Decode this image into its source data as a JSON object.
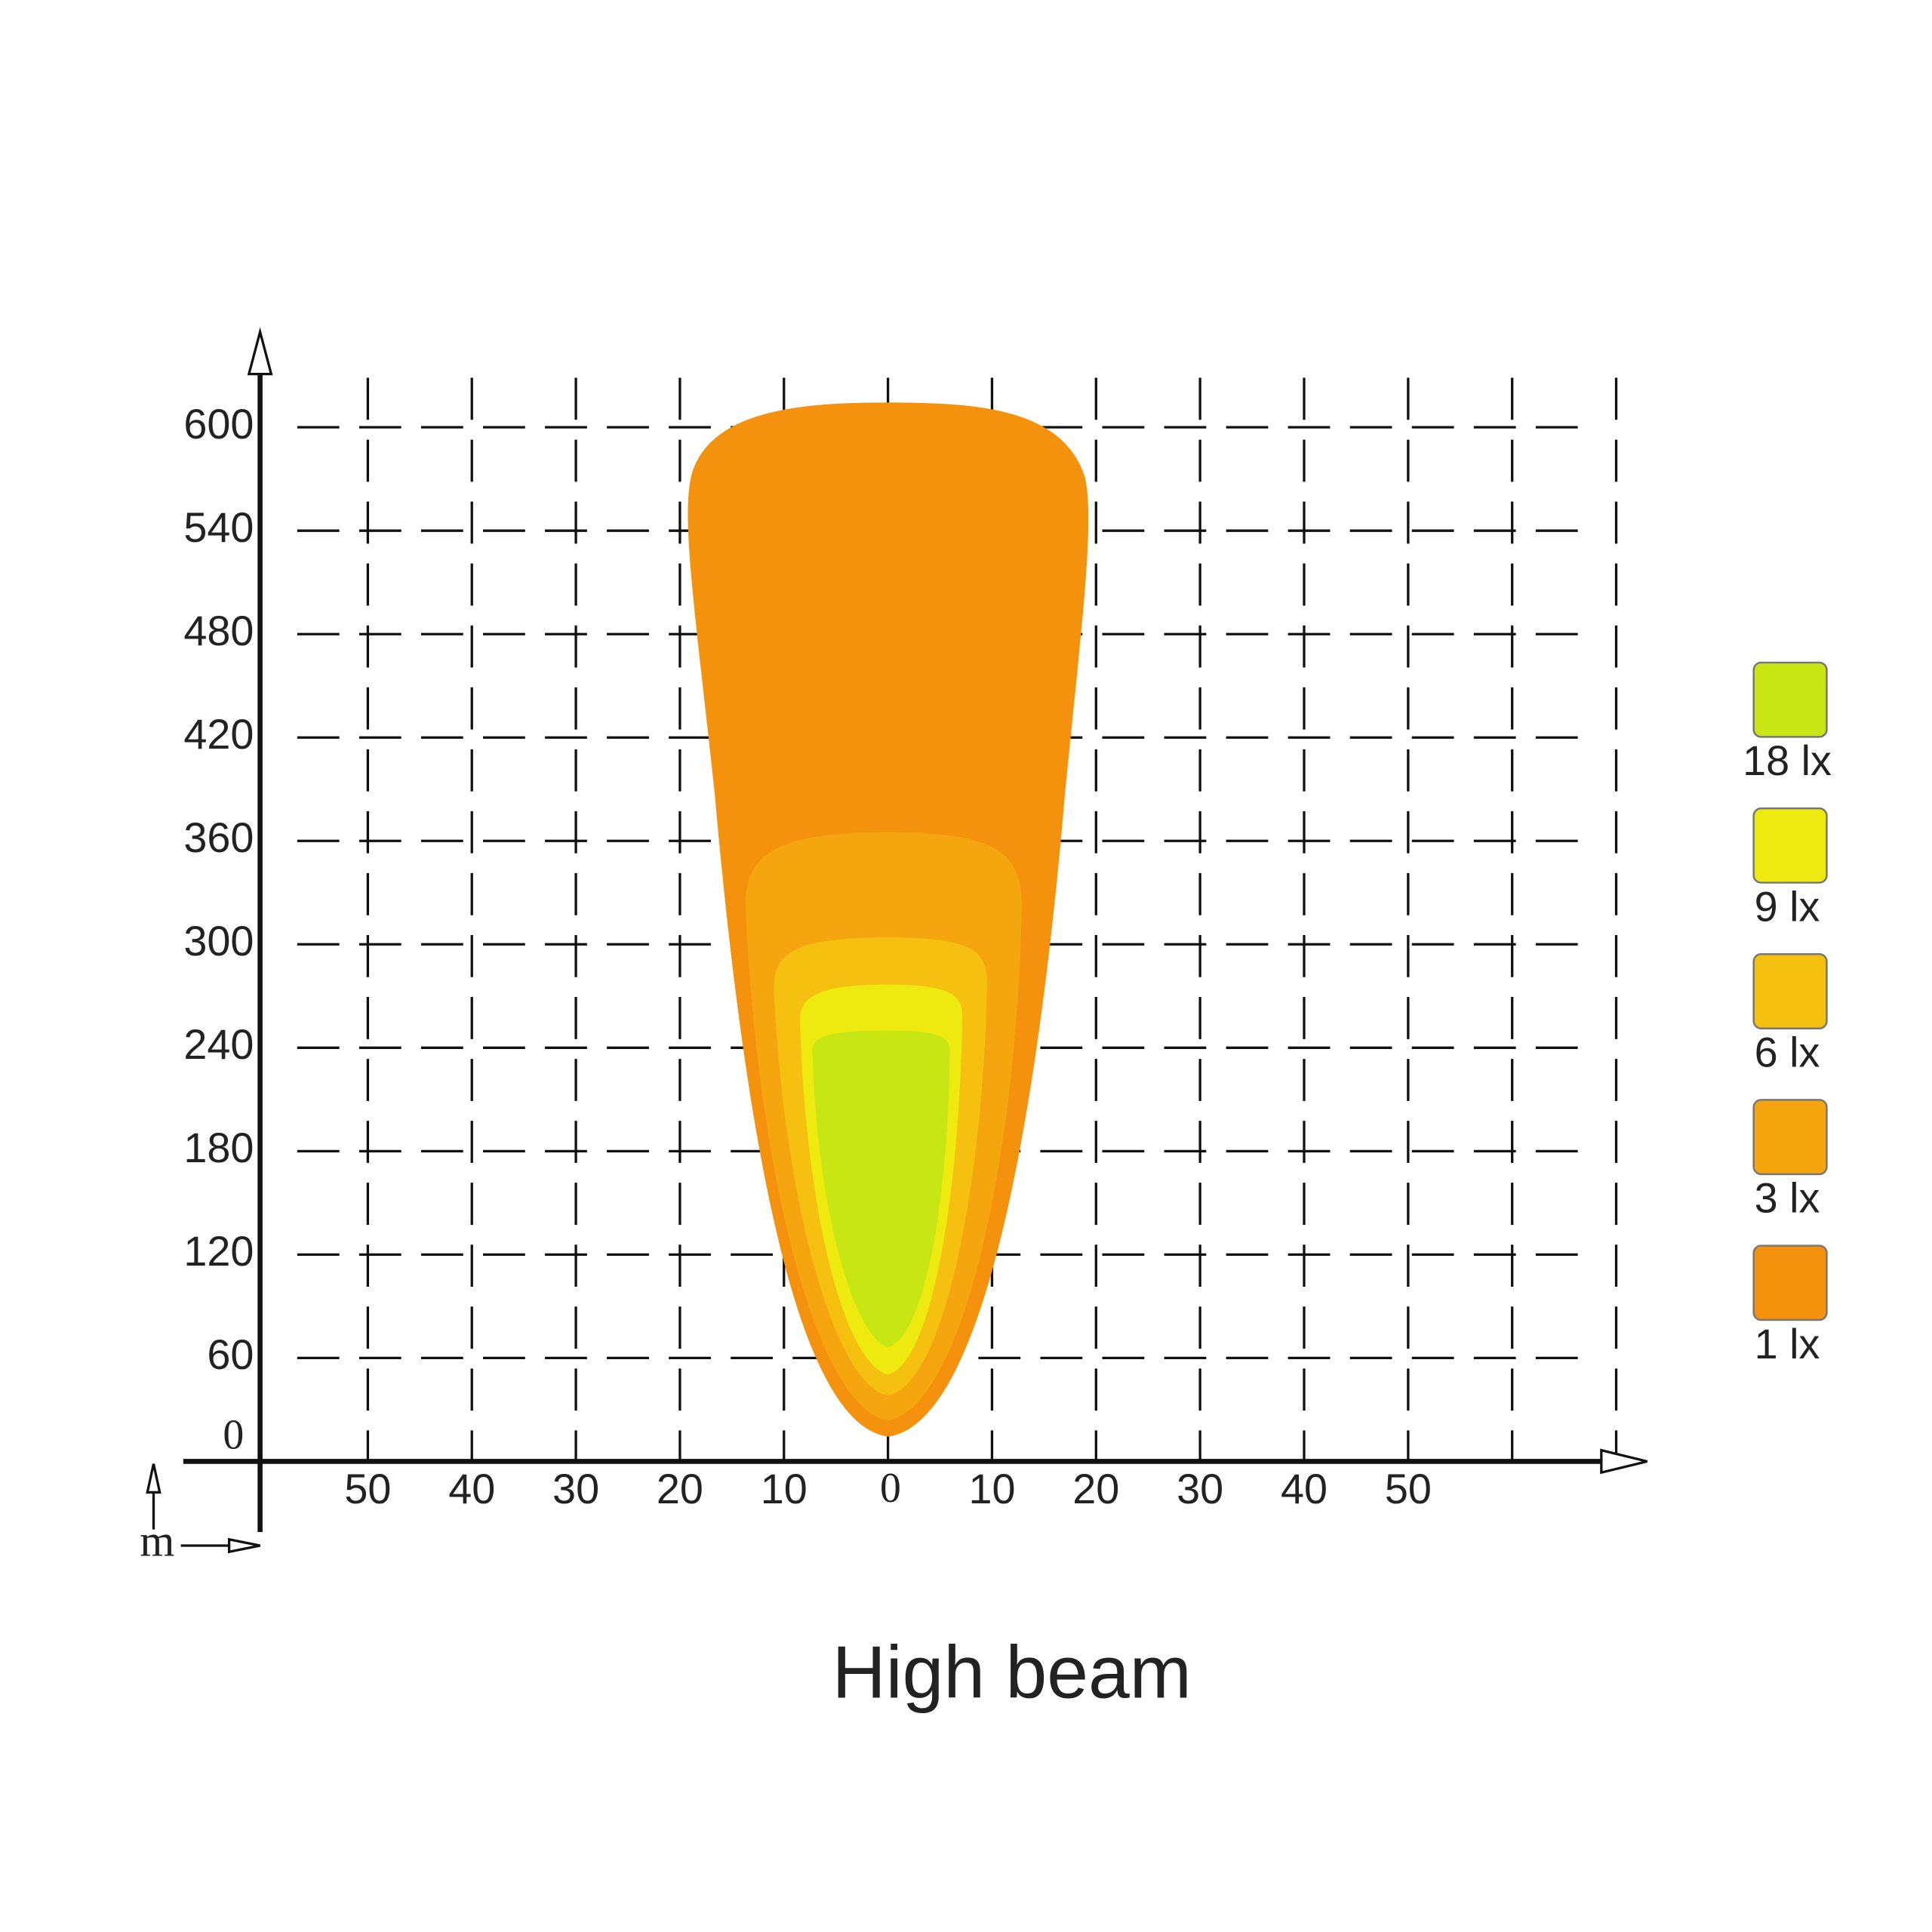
{
  "title": "High beam",
  "unit": "m",
  "y_axis": {
    "labels": [
      "0",
      "60",
      "120",
      "180",
      "240",
      "300",
      "360",
      "420",
      "480",
      "540",
      "600"
    ]
  },
  "x_axis": {
    "labels": [
      "50",
      "40",
      "30",
      "20",
      "10",
      "0",
      "10",
      "20",
      "30",
      "40",
      "50"
    ]
  },
  "legend": [
    {
      "label": "18 lx",
      "color": "#c8e614"
    },
    {
      "label": "9 lx",
      "color": "#eeea10"
    },
    {
      "label": "6 lx",
      "color": "#f6c010"
    },
    {
      "label": "3 lx",
      "color": "#f5a50e"
    },
    {
      "label": "1 lx",
      "color": "#f4920e"
    }
  ]
}
